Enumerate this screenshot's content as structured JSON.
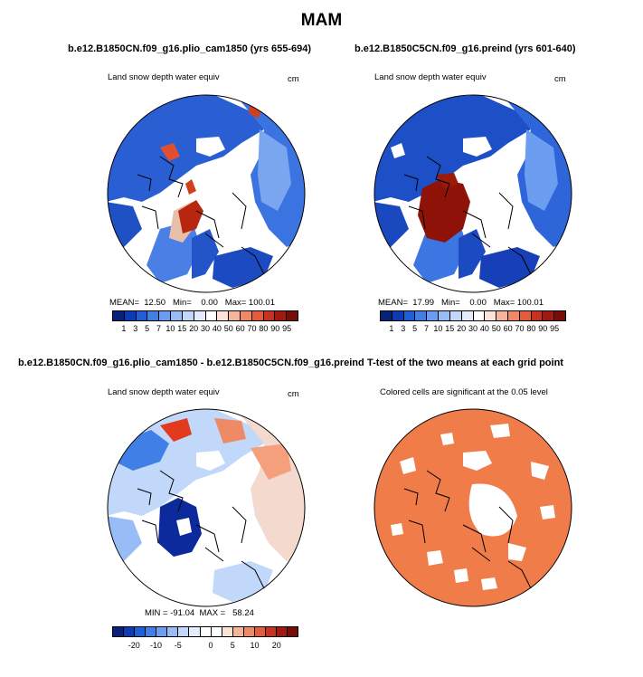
{
  "figure": {
    "season_title": "MAM",
    "top_left": {
      "title": "b.e12.B1850CN.f09_g16.plio_cam1850 (yrs 655-694)",
      "var_label": "Land snow depth water equiv",
      "units": "cm",
      "stats": "MEAN=  12.50   Min=    0.00   Max= 100.01",
      "map": "polar-stereographic-north-plio-snow-depth"
    },
    "top_right": {
      "title": "b.e12.B1850C5CN.f09_g16.preind (yrs 601-640)",
      "var_label": "Land snow depth water equiv",
      "units": "cm",
      "stats": "MEAN=  17.99   Min=    0.00   Max= 100.01",
      "map": "polar-stereographic-north-preind-snow-depth"
    },
    "bottom_left": {
      "title": "b.e12.B1850CN.f09_g16.plio_cam1850 - b.e12.B1850C5CN.f09_g16.preind",
      "var_label": "Land snow depth water equiv",
      "units": "cm",
      "stats": "MIN = -91.04  MAX =   58.24",
      "map": "polar-stereographic-north-difference"
    },
    "bottom_right": {
      "title": "T-test of the two means at each grid point",
      "var_label": "Colored cells are significant at the 0.05 level",
      "map": "polar-stereographic-north-significance"
    },
    "colorbar_abs": {
      "labels": [
        "1",
        "3",
        "5",
        "7",
        "10",
        "15",
        "20",
        "30",
        "40",
        "50",
        "60",
        "70",
        "80",
        "90",
        "95"
      ],
      "colors": [
        "#08217a",
        "#0c3cb4",
        "#1f5fd6",
        "#3f7fe6",
        "#6b9ef0",
        "#98bdf6",
        "#c2d8fa",
        "#e2ecfc",
        "#ffffff",
        "#fbe2d6",
        "#f6b49a",
        "#ef8a66",
        "#e35d3c",
        "#c83220",
        "#a01a10",
        "#780c06"
      ]
    },
    "colorbar_diff": {
      "labels": [
        "-20",
        "-10",
        "-5",
        "0",
        "5",
        "10",
        "20"
      ],
      "colors": [
        "#08217a",
        "#0c3cb4",
        "#1f5fd6",
        "#3f7fe6",
        "#6b9ef0",
        "#98bdf6",
        "#c2d8fa",
        "#e2ecfc",
        "#ffffff",
        "#ffffff",
        "#fbe2d6",
        "#f6b49a",
        "#ef8a66",
        "#e35d3c",
        "#c83220",
        "#a01a10",
        "#780c06"
      ]
    },
    "significance_color": "#f07c4a"
  }
}
